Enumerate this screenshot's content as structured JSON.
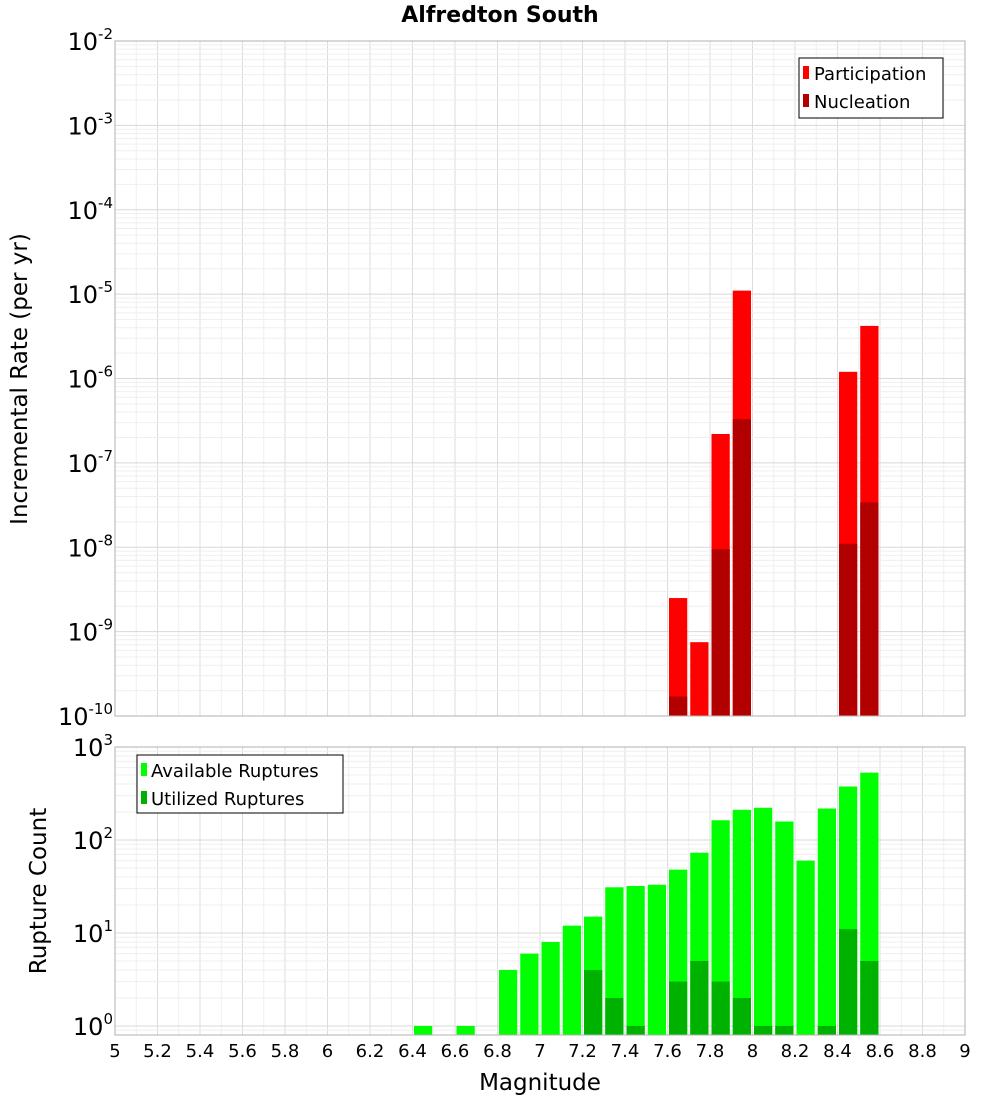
{
  "chart_data": [
    {
      "type": "bar",
      "title": "Alfredton South",
      "xlabel": "",
      "ylabel": "Incremental Rate (per yr)",
      "xlim": [
        5,
        9
      ],
      "ylim": [
        1e-10,
        0.01
      ],
      "y_scale": "log",
      "y_tick_exponents": [
        -2,
        -3,
        -4,
        -5,
        -6,
        -7,
        -8,
        -9,
        -10
      ],
      "grid": true,
      "legend_position": "top-right",
      "bar_width": 0.1,
      "series": [
        {
          "name": "Participation",
          "color": "#ff0000",
          "x": [
            7.65,
            7.75,
            7.85,
            7.95,
            8.45,
            8.55
          ],
          "values": [
            2.5e-09,
            7.5e-10,
            2.2e-07,
            1.1e-05,
            1.2e-06,
            4.2e-06
          ]
        },
        {
          "name": "Nucleation",
          "color": "#b20000",
          "x": [
            7.65,
            7.85,
            7.95,
            8.45,
            8.55
          ],
          "values": [
            1.7e-10,
            9.5e-09,
            3.3e-07,
            1.1e-08,
            3.4e-08
          ]
        }
      ]
    },
    {
      "type": "bar",
      "title": "",
      "xlabel": "Magnitude",
      "ylabel": "Rupture Count",
      "xlim": [
        5,
        9
      ],
      "ylim": [
        0.8,
        1000
      ],
      "y_scale": "log",
      "y_tick_exponents": [
        3,
        2,
        1,
        0
      ],
      "x_ticks": [
        "5",
        "5.2",
        "5.4",
        "5.6",
        "5.8",
        "6",
        "6.2",
        "6.4",
        "6.6",
        "6.8",
        "7",
        "7.2",
        "7.4",
        "7.6",
        "7.8",
        "8",
        "8.2",
        "8.4",
        "8.6",
        "8.8",
        "9"
      ],
      "grid": true,
      "legend_position": "top-left",
      "bar_width": 0.1,
      "series": [
        {
          "name": "Available Ruptures",
          "color": "#00ff00",
          "x": [
            6.45,
            6.65,
            6.85,
            6.95,
            7.05,
            7.15,
            7.25,
            7.35,
            7.45,
            7.55,
            7.65,
            7.75,
            7.85,
            7.95,
            8.05,
            8.15,
            8.25,
            8.35,
            8.45,
            8.55
          ],
          "values": [
            1,
            1,
            4,
            6,
            8,
            12,
            15,
            31,
            32,
            33,
            48,
            73,
            163,
            211,
            222,
            158,
            60,
            218,
            376,
            530
          ]
        },
        {
          "name": "Utilized Ruptures",
          "color": "#00b200",
          "x": [
            7.25,
            7.35,
            7.45,
            7.65,
            7.75,
            7.85,
            7.95,
            8.05,
            8.15,
            8.35,
            8.45,
            8.55
          ],
          "values": [
            4,
            2,
            1,
            3,
            5,
            3,
            2,
            1,
            1,
            1,
            11,
            5
          ]
        }
      ]
    }
  ]
}
